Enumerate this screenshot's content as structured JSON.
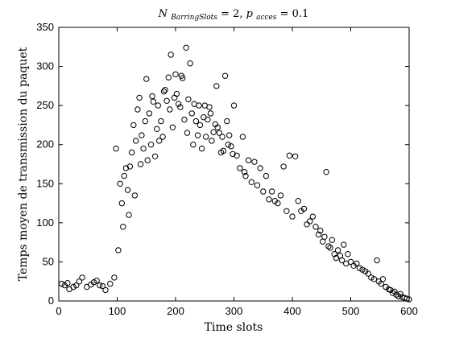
{
  "chart_data": {
    "type": "scatter",
    "title": "N_{BarringSlots} = 2, p_{acces} = 0.1",
    "title_parts": {
      "n_symbol": "N",
      "n_subscript": "BarringSlots",
      "n_value": " = 2, ",
      "p_symbol": "p",
      "p_subscript": "acces",
      "p_value": " = 0.1"
    },
    "xlabel": "Time slots",
    "ylabel": "Temps moyen de transmission du paquet",
    "xlim": [
      0,
      600
    ],
    "ylim": [
      0,
      350
    ],
    "xticks": [
      "0",
      "100",
      "200",
      "300",
      "400",
      "500",
      "600"
    ],
    "yticks": [
      "0",
      "50",
      "100",
      "150",
      "200",
      "250",
      "300",
      "350"
    ],
    "grid": false,
    "marker": "open circle",
    "marker_color": "#000000",
    "points": [
      [
        5,
        22
      ],
      [
        10,
        20
      ],
      [
        15,
        23
      ],
      [
        18,
        15
      ],
      [
        25,
        18
      ],
      [
        30,
        20
      ],
      [
        35,
        25
      ],
      [
        40,
        30
      ],
      [
        48,
        18
      ],
      [
        55,
        21
      ],
      [
        60,
        24
      ],
      [
        65,
        26
      ],
      [
        70,
        20
      ],
      [
        75,
        19
      ],
      [
        80,
        14
      ],
      [
        88,
        22
      ],
      [
        95,
        30
      ],
      [
        98,
        195
      ],
      [
        102,
        65
      ],
      [
        105,
        150
      ],
      [
        108,
        125
      ],
      [
        110,
        95
      ],
      [
        112,
        160
      ],
      [
        115,
        170
      ],
      [
        118,
        142
      ],
      [
        120,
        110
      ],
      [
        122,
        172
      ],
      [
        125,
        190
      ],
      [
        128,
        225
      ],
      [
        130,
        135
      ],
      [
        132,
        205
      ],
      [
        135,
        245
      ],
      [
        138,
        260
      ],
      [
        140,
        175
      ],
      [
        142,
        212
      ],
      [
        145,
        195
      ],
      [
        148,
        230
      ],
      [
        150,
        284
      ],
      [
        152,
        180
      ],
      [
        155,
        240
      ],
      [
        158,
        200
      ],
      [
        160,
        262
      ],
      [
        162,
        255
      ],
      [
        165,
        185
      ],
      [
        168,
        220
      ],
      [
        170,
        250
      ],
      [
        172,
        205
      ],
      [
        175,
        230
      ],
      [
        178,
        210
      ],
      [
        180,
        268
      ],
      [
        182,
        270
      ],
      [
        185,
        256
      ],
      [
        188,
        286
      ],
      [
        190,
        245
      ],
      [
        192,
        315
      ],
      [
        195,
        222
      ],
      [
        198,
        260
      ],
      [
        200,
        290
      ],
      [
        202,
        265
      ],
      [
        205,
        252
      ],
      [
        208,
        248
      ],
      [
        210,
        288
      ],
      [
        212,
        285
      ],
      [
        215,
        232
      ],
      [
        218,
        324
      ],
      [
        220,
        215
      ],
      [
        222,
        258
      ],
      [
        225,
        304
      ],
      [
        228,
        240
      ],
      [
        230,
        200
      ],
      [
        232,
        252
      ],
      [
        235,
        230
      ],
      [
        238,
        212
      ],
      [
        240,
        250
      ],
      [
        242,
        225
      ],
      [
        245,
        195
      ],
      [
        248,
        235
      ],
      [
        250,
        250
      ],
      [
        252,
        210
      ],
      [
        255,
        232
      ],
      [
        258,
        248
      ],
      [
        260,
        240
      ],
      [
        262,
        205
      ],
      [
        265,
        216
      ],
      [
        268,
        226
      ],
      [
        270,
        275
      ],
      [
        272,
        222
      ],
      [
        275,
        215
      ],
      [
        278,
        190
      ],
      [
        280,
        210
      ],
      [
        282,
        192
      ],
      [
        285,
        288
      ],
      [
        288,
        230
      ],
      [
        290,
        200
      ],
      [
        292,
        212
      ],
      [
        295,
        198
      ],
      [
        298,
        188
      ],
      [
        300,
        250
      ],
      [
        305,
        186
      ],
      [
        310,
        170
      ],
      [
        315,
        210
      ],
      [
        318,
        165
      ],
      [
        320,
        160
      ],
      [
        325,
        180
      ],
      [
        330,
        152
      ],
      [
        335,
        178
      ],
      [
        340,
        148
      ],
      [
        345,
        170
      ],
      [
        350,
        140
      ],
      [
        355,
        160
      ],
      [
        360,
        130
      ],
      [
        365,
        140
      ],
      [
        370,
        128
      ],
      [
        375,
        125
      ],
      [
        380,
        135
      ],
      [
        385,
        172
      ],
      [
        390,
        115
      ],
      [
        395,
        186
      ],
      [
        400,
        108
      ],
      [
        405,
        185
      ],
      [
        410,
        128
      ],
      [
        415,
        115
      ],
      [
        420,
        118
      ],
      [
        425,
        98
      ],
      [
        430,
        102
      ],
      [
        435,
        108
      ],
      [
        440,
        95
      ],
      [
        445,
        85
      ],
      [
        448,
        90
      ],
      [
        452,
        76
      ],
      [
        455,
        82
      ],
      [
        458,
        165
      ],
      [
        462,
        70
      ],
      [
        465,
        68
      ],
      [
        468,
        78
      ],
      [
        472,
        60
      ],
      [
        475,
        55
      ],
      [
        478,
        65
      ],
      [
        482,
        58
      ],
      [
        485,
        52
      ],
      [
        488,
        72
      ],
      [
        492,
        48
      ],
      [
        495,
        60
      ],
      [
        500,
        50
      ],
      [
        505,
        45
      ],
      [
        510,
        48
      ],
      [
        515,
        42
      ],
      [
        520,
        40
      ],
      [
        525,
        38
      ],
      [
        530,
        35
      ],
      [
        535,
        30
      ],
      [
        540,
        28
      ],
      [
        545,
        52
      ],
      [
        548,
        25
      ],
      [
        552,
        22
      ],
      [
        555,
        28
      ],
      [
        560,
        18
      ],
      [
        565,
        15
      ],
      [
        568,
        14
      ],
      [
        572,
        10
      ],
      [
        575,
        12
      ],
      [
        578,
        8
      ],
      [
        582,
        6
      ],
      [
        585,
        9
      ],
      [
        588,
        5
      ],
      [
        592,
        4
      ],
      [
        596,
        3
      ],
      [
        600,
        2
      ]
    ]
  }
}
